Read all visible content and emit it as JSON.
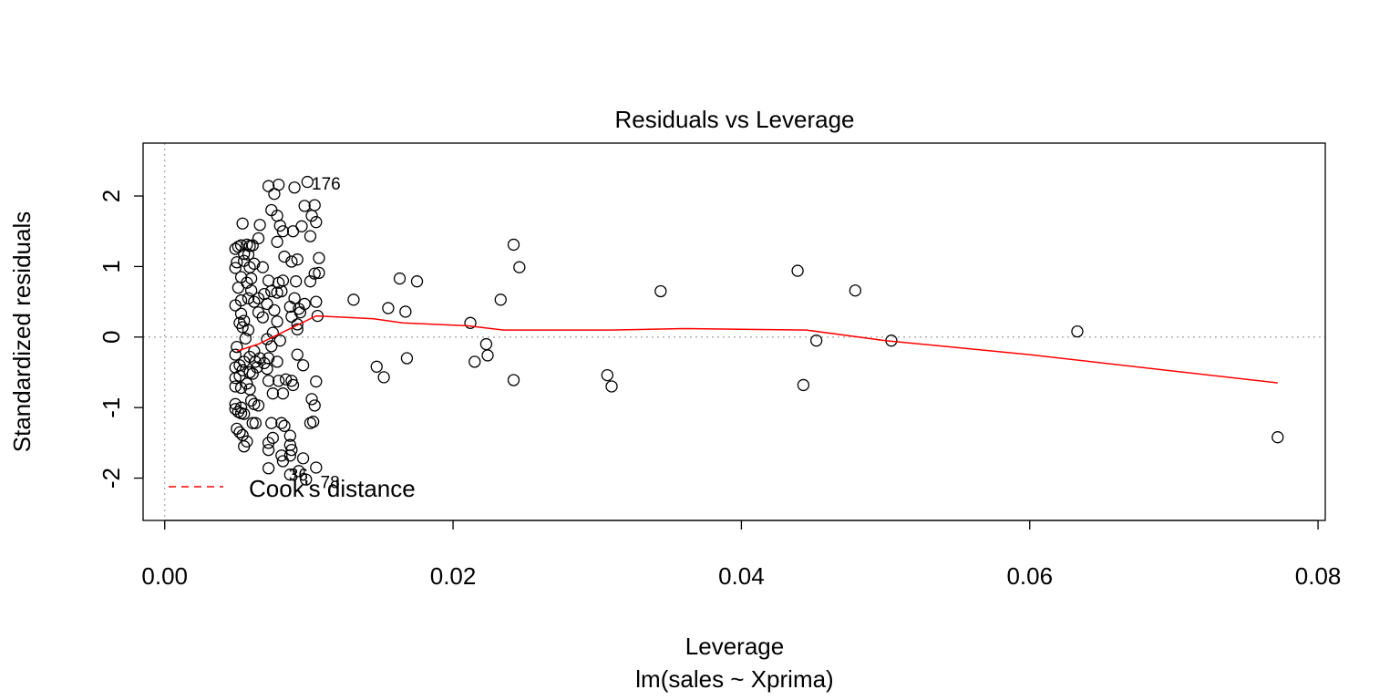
{
  "chart_data": {
    "type": "scatter",
    "title": "Residuals vs Leverage",
    "subtitle": "lm(sales ~ Xprima)",
    "xlabel": "Leverage",
    "ylabel": "Standardized residuals",
    "xlim": [
      -0.0015,
      0.0805
    ],
    "ylim": [
      -2.6,
      2.75
    ],
    "xticks": [
      0.0,
      0.02,
      0.04,
      0.06,
      0.08
    ],
    "xtick_labels": [
      "0.00",
      "0.02",
      "0.04",
      "0.06",
      "0.08"
    ],
    "yticks": [
      -2,
      -1,
      0,
      1,
      2
    ],
    "ytick_labels": [
      "-2",
      "-1",
      "0",
      "1",
      "2"
    ],
    "reference_lines": {
      "x": 0,
      "y": 0,
      "style": "dotted",
      "color": "#aaaaaa"
    },
    "legend": {
      "position": "bottom-left",
      "entries": [
        {
          "label": "Cook's distance",
          "color": "#ff0000",
          "style": "dashed"
        }
      ]
    },
    "smooth_line": {
      "color": "#ff0000",
      "x": [
        0.005,
        0.0065,
        0.008,
        0.0095,
        0.0105,
        0.0125,
        0.0145,
        0.0165,
        0.021,
        0.0235,
        0.031,
        0.036,
        0.0445,
        0.05,
        0.06,
        0.0772
      ],
      "y": [
        -0.2,
        -0.1,
        0.05,
        0.2,
        0.3,
        0.28,
        0.26,
        0.2,
        0.16,
        0.1,
        0.1,
        0.12,
        0.1,
        -0.05,
        -0.25,
        -0.65
      ]
    },
    "annotations": [
      {
        "label": "176",
        "x": 0.0102,
        "y": 2.18
      },
      {
        "label": "36",
        "x": 0.0086,
        "y": -1.95
      },
      {
        "label": "78",
        "x": 0.0108,
        "y": -2.05
      }
    ],
    "points": [
      [
        0.0099,
        2.2
      ],
      [
        0.0072,
        2.14
      ],
      [
        0.0079,
        2.16
      ],
      [
        0.009,
        2.12
      ],
      [
        0.0076,
        2.03
      ],
      [
        0.0104,
        1.87
      ],
      [
        0.0097,
        1.86
      ],
      [
        0.0074,
        1.8
      ],
      [
        0.0078,
        1.72
      ],
      [
        0.0102,
        1.72
      ],
      [
        0.0105,
        1.63
      ],
      [
        0.0054,
        1.61
      ],
      [
        0.0095,
        1.57
      ],
      [
        0.0066,
        1.59
      ],
      [
        0.008,
        1.58
      ],
      [
        0.0082,
        1.5
      ],
      [
        0.0089,
        1.5
      ],
      [
        0.0101,
        1.43
      ],
      [
        0.0065,
        1.4
      ],
      [
        0.0078,
        1.35
      ],
      [
        0.0051,
        1.28
      ],
      [
        0.0053,
        1.3
      ],
      [
        0.0057,
        1.31
      ],
      [
        0.0059,
        1.29
      ],
      [
        0.0061,
        1.3
      ],
      [
        0.0049,
        1.25
      ],
      [
        0.0055,
        1.18
      ],
      [
        0.0058,
        1.17
      ],
      [
        0.0083,
        1.14
      ],
      [
        0.0107,
        1.12
      ],
      [
        0.0092,
        1.1
      ],
      [
        0.0055,
        1.08
      ],
      [
        0.0088,
        1.07
      ],
      [
        0.005,
        1.06
      ],
      [
        0.0062,
        1.04
      ],
      [
        0.0049,
        0.98
      ],
      [
        0.0059,
        0.99
      ],
      [
        0.0068,
        0.99
      ],
      [
        0.0104,
        0.9
      ],
      [
        0.0107,
        0.91
      ],
      [
        0.0053,
        0.85
      ],
      [
        0.006,
        0.83
      ],
      [
        0.0082,
        0.8
      ],
      [
        0.0072,
        0.8
      ],
      [
        0.0057,
        0.77
      ],
      [
        0.0079,
        0.77
      ],
      [
        0.0091,
        0.79
      ],
      [
        0.0101,
        0.79
      ],
      [
        0.0051,
        0.7
      ],
      [
        0.006,
        0.66
      ],
      [
        0.0074,
        0.65
      ],
      [
        0.0081,
        0.65
      ],
      [
        0.0078,
        0.63
      ],
      [
        0.0069,
        0.61
      ],
      [
        0.0058,
        0.55
      ],
      [
        0.0065,
        0.55
      ],
      [
        0.009,
        0.55
      ],
      [
        0.0053,
        0.52
      ],
      [
        0.0062,
        0.5
      ],
      [
        0.0105,
        0.5
      ],
      [
        0.0097,
        0.47
      ],
      [
        0.0049,
        0.45
      ],
      [
        0.0071,
        0.47
      ],
      [
        0.0087,
        0.43
      ],
      [
        0.0093,
        0.4
      ],
      [
        0.0076,
        0.38
      ],
      [
        0.0053,
        0.33
      ],
      [
        0.0065,
        0.35
      ],
      [
        0.0094,
        0.35
      ],
      [
        0.0106,
        0.3
      ],
      [
        0.0088,
        0.29
      ],
      [
        0.0068,
        0.28
      ],
      [
        0.0078,
        0.22
      ],
      [
        0.0052,
        0.2
      ],
      [
        0.0055,
        0.23
      ],
      [
        0.0092,
        0.18
      ],
      [
        0.0054,
        0.14
      ],
      [
        0.0058,
        0.1
      ],
      [
        0.0092,
        0.11
      ],
      [
        0.0075,
        0.06
      ],
      [
        0.0056,
        -0.02
      ],
      [
        0.0071,
        -0.03
      ],
      [
        0.008,
        -0.05
      ],
      [
        0.005,
        -0.14
      ],
      [
        0.0074,
        -0.13
      ],
      [
        0.0062,
        -0.2
      ],
      [
        0.0092,
        -0.25
      ],
      [
        0.0049,
        -0.25
      ],
      [
        0.0059,
        -0.28
      ],
      [
        0.0066,
        -0.3
      ],
      [
        0.0072,
        -0.3
      ],
      [
        0.0063,
        -0.35
      ],
      [
        0.0055,
        -0.35
      ],
      [
        0.0078,
        -0.35
      ],
      [
        0.0069,
        -0.37
      ],
      [
        0.0052,
        -0.4
      ],
      [
        0.0096,
        -0.4
      ],
      [
        0.0064,
        -0.43
      ],
      [
        0.0049,
        -0.43
      ],
      [
        0.0071,
        -0.45
      ],
      [
        0.0054,
        -0.47
      ],
      [
        0.0059,
        -0.5
      ],
      [
        0.0061,
        -0.52
      ],
      [
        0.0052,
        -0.55
      ],
      [
        0.0049,
        -0.58
      ],
      [
        0.0084,
        -0.6
      ],
      [
        0.0079,
        -0.62
      ],
      [
        0.0072,
        -0.62
      ],
      [
        0.0088,
        -0.62
      ],
      [
        0.0105,
        -0.63
      ],
      [
        0.0057,
        -0.66
      ],
      [
        0.0089,
        -0.68
      ],
      [
        0.0049,
        -0.7
      ],
      [
        0.0053,
        -0.72
      ],
      [
        0.0059,
        -0.74
      ],
      [
        0.0075,
        -0.8
      ],
      [
        0.0082,
        -0.8
      ],
      [
        0.0102,
        -0.88
      ],
      [
        0.006,
        -0.9
      ],
      [
        0.0049,
        -0.95
      ],
      [
        0.0062,
        -0.95
      ],
      [
        0.0065,
        -0.97
      ],
      [
        0.0104,
        -0.97
      ],
      [
        0.0053,
        -1.0
      ],
      [
        0.0049,
        -1.02
      ],
      [
        0.0051,
        -1.06
      ],
      [
        0.0053,
        -1.08
      ],
      [
        0.0055,
        -1.09
      ],
      [
        0.0103,
        -1.2
      ],
      [
        0.0101,
        -1.22
      ],
      [
        0.0061,
        -1.22
      ],
      [
        0.0063,
        -1.22
      ],
      [
        0.0074,
        -1.22
      ],
      [
        0.0081,
        -1.22
      ],
      [
        0.0083,
        -1.26
      ],
      [
        0.005,
        -1.3
      ],
      [
        0.0052,
        -1.35
      ],
      [
        0.0054,
        -1.39
      ],
      [
        0.0087,
        -1.4
      ],
      [
        0.0075,
        -1.43
      ],
      [
        0.0057,
        -1.48
      ],
      [
        0.0072,
        -1.5
      ],
      [
        0.0087,
        -1.53
      ],
      [
        0.0055,
        -1.55
      ],
      [
        0.0072,
        -1.6
      ],
      [
        0.0088,
        -1.6
      ],
      [
        0.0081,
        -1.68
      ],
      [
        0.0087,
        -1.68
      ],
      [
        0.0096,
        -1.72
      ],
      [
        0.0082,
        -1.76
      ],
      [
        0.0072,
        -1.86
      ],
      [
        0.0105,
        -1.85
      ],
      [
        0.0093,
        -1.9
      ],
      [
        0.0087,
        -1.95
      ],
      [
        0.0098,
        -2.02
      ],
      [
        0.0131,
        0.53
      ],
      [
        0.0155,
        0.41
      ],
      [
        0.0163,
        0.83
      ],
      [
        0.0167,
        0.36
      ],
      [
        0.0175,
        0.79
      ],
      [
        0.0147,
        -0.42
      ],
      [
        0.0152,
        -0.57
      ],
      [
        0.0168,
        -0.3
      ],
      [
        0.0212,
        0.2
      ],
      [
        0.0215,
        -0.35
      ],
      [
        0.0223,
        -0.1
      ],
      [
        0.0224,
        -0.26
      ],
      [
        0.0233,
        0.53
      ],
      [
        0.0242,
        1.31
      ],
      [
        0.0246,
        0.99
      ],
      [
        0.0242,
        -0.61
      ],
      [
        0.0307,
        -0.54
      ],
      [
        0.031,
        -0.7
      ],
      [
        0.0344,
        0.65
      ],
      [
        0.0439,
        0.94
      ],
      [
        0.0443,
        -0.68
      ],
      [
        0.0452,
        -0.05
      ],
      [
        0.0479,
        0.66
      ],
      [
        0.0504,
        -0.05
      ],
      [
        0.0633,
        0.08
      ],
      [
        0.0772,
        -1.42
      ]
    ]
  }
}
